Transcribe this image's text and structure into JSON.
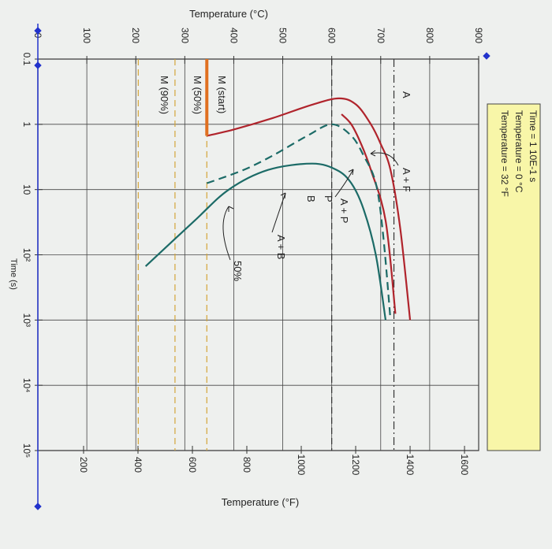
{
  "info_box": {
    "time": "Time = 1  10E-1 s",
    "temp_c": "Temperature = 0 °C",
    "temp_f": "Temperature = 32 °F"
  },
  "chart_data": {
    "type": "line",
    "title": "",
    "xlabel": "Time (s)",
    "x_scale": "log",
    "x_ticks": [
      "0.1",
      "1",
      "10",
      "10²",
      "10³",
      "10⁴",
      "10⁵"
    ],
    "x_tick_values": [
      0.1,
      1,
      10,
      100,
      1000,
      10000,
      100000
    ],
    "xlim": [
      0.1,
      100000
    ],
    "ylabel_left": "Temperature (°C)",
    "y_ticks_c": [
      0,
      100,
      200,
      300,
      400,
      500,
      600,
      700,
      800,
      900
    ],
    "ylim_c": [
      0,
      900
    ],
    "ylabel_right": "Temperature (°F)",
    "y_ticks_f": [
      200,
      400,
      600,
      800,
      1000,
      1200,
      1400,
      1600
    ],
    "grid": true,
    "orientation": "rotated 90° clockwise",
    "series": [
      {
        "color": "#b0242c",
        "dash": "solid",
        "points": [
          [
            1.5,
            345
          ],
          [
            1.2,
            400
          ],
          [
            0.8,
            480
          ],
          [
            0.5,
            560
          ],
          [
            0.4,
            615
          ],
          [
            0.5,
            650
          ],
          [
            1.0,
            680
          ],
          [
            2,
            700
          ],
          [
            5,
            720
          ],
          [
            40,
            740
          ],
          [
            1000,
            760
          ]
        ]
      },
      {
        "color": "#b0242c",
        "dash": "solid",
        "points": [
          [
            0.7,
            620
          ],
          [
            1.0,
            640
          ],
          [
            2,
            660
          ],
          [
            5,
            680
          ],
          [
            30,
            710
          ],
          [
            800,
            730
          ]
        ]
      },
      {
        "color": "#1c6b67",
        "dash": "dashed",
        "points": [
          [
            8,
            345
          ],
          [
            5,
            420
          ],
          [
            3,
            480
          ],
          [
            1.5,
            550
          ],
          [
            1.0,
            600
          ],
          [
            1.5,
            640
          ],
          [
            3,
            665
          ],
          [
            8,
            690
          ],
          [
            50,
            705
          ],
          [
            1000,
            720
          ]
        ]
      },
      {
        "color": "#1c6b67",
        "dash": "solid",
        "points": [
          [
            150,
            220
          ],
          [
            30,
            320
          ],
          [
            10,
            390
          ],
          [
            5,
            470
          ],
          [
            4,
            560
          ],
          [
            5,
            610
          ],
          [
            8,
            640
          ],
          [
            20,
            665
          ],
          [
            100,
            690
          ],
          [
            1000,
            710
          ]
        ]
      }
    ],
    "reference_lines": [
      {
        "y": 727,
        "style": "dash-dot",
        "color": "#333333"
      },
      {
        "y": 600,
        "style": "dashed",
        "color": "#333333"
      },
      {
        "y": 345,
        "style": "dashed",
        "color": "#d4a53a"
      },
      {
        "y": 280,
        "style": "dashed",
        "color": "#d4a53a"
      },
      {
        "y": 205,
        "style": "dashed",
        "color": "#d4a53a"
      }
    ],
    "quench_path": {
      "color": "#e07020",
      "points": [
        [
          0.1,
          345
        ],
        [
          1.5,
          345
        ]
      ]
    },
    "annotations": [
      "A",
      "A + F",
      "A + P",
      "P",
      "B",
      "A + B",
      "50%",
      "M (start)",
      "M (50%)",
      "M (90%)"
    ]
  }
}
